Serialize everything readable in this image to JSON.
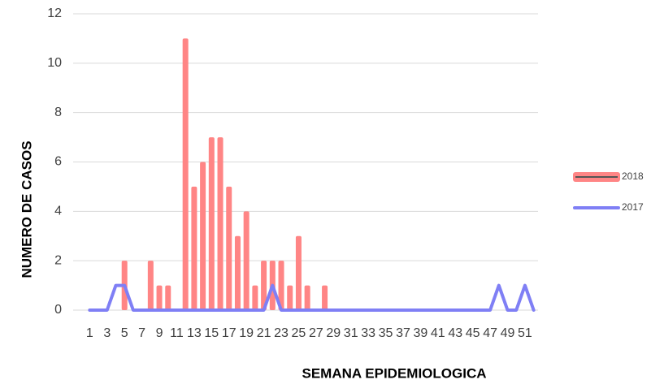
{
  "chart_data": {
    "type": "bar_line",
    "x_label": "SEMANA EPIDEMIOLOGICA",
    "y_label": "NUMERO DE CASOS",
    "categories": [
      1,
      null,
      3,
      null,
      5,
      null,
      7,
      null,
      9,
      null,
      11,
      null,
      13,
      null,
      15,
      null,
      17,
      null,
      19,
      null,
      21,
      null,
      23,
      null,
      25,
      null,
      27,
      null,
      29,
      null,
      31,
      null,
      33,
      null,
      35,
      null,
      37,
      null,
      39,
      null,
      41,
      null,
      43,
      null,
      45,
      null,
      47,
      null,
      49,
      null,
      51,
      null
    ],
    "series": [
      {
        "name": "2018",
        "type": "bar",
        "color": "#ff8585",
        "values": [
          0,
          0,
          0,
          0,
          2,
          0,
          0,
          2,
          1,
          1,
          0,
          11,
          5,
          6,
          7,
          7,
          5,
          3,
          4,
          1,
          2,
          2,
          2,
          1,
          3,
          1,
          0,
          1,
          0,
          0,
          0,
          0,
          0,
          0,
          0,
          0,
          0,
          0,
          0,
          0,
          0,
          0,
          0,
          0,
          0,
          0,
          0,
          0,
          0,
          0,
          0,
          0
        ]
      },
      {
        "name": "2017",
        "type": "line",
        "color": "#7f7ff5",
        "values": [
          0,
          0,
          0,
          1,
          1,
          0,
          0,
          0,
          0,
          0,
          0,
          0,
          0,
          0,
          0,
          0,
          0,
          0,
          0,
          0,
          0,
          1,
          0,
          0,
          0,
          0,
          0,
          0,
          0,
          0,
          0,
          0,
          0,
          0,
          0,
          0,
          0,
          0,
          0,
          0,
          0,
          0,
          0,
          0,
          0,
          0,
          0,
          1,
          0,
          0,
          1,
          0
        ]
      }
    ],
    "ylim": [
      0,
      12
    ],
    "yticks": [
      0,
      2,
      4,
      6,
      8,
      10,
      12
    ],
    "grid": true,
    "legend": "right"
  }
}
